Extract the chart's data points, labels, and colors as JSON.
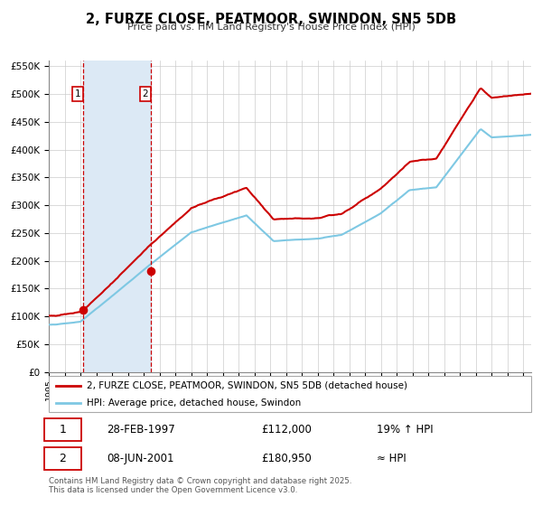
{
  "title": "2, FURZE CLOSE, PEATMOOR, SWINDON, SN5 5DB",
  "subtitle": "Price paid vs. HM Land Registry's House Price Index (HPI)",
  "legend_line1": "2, FURZE CLOSE, PEATMOOR, SWINDON, SN5 5DB (detached house)",
  "legend_line2": "HPI: Average price, detached house, Swindon",
  "transaction1_date": "28-FEB-1997",
  "transaction1_price": "£112,000",
  "transaction1_hpi": "19% ↑ HPI",
  "transaction2_date": "08-JUN-2001",
  "transaction2_price": "£180,950",
  "transaction2_hpi": "≈ HPI",
  "footer": "Contains HM Land Registry data © Crown copyright and database right 2025.\nThis data is licensed under the Open Government Licence v3.0.",
  "sale1_date": 1997.16,
  "sale1_price": 112000,
  "sale2_date": 2001.44,
  "sale2_price": 180950,
  "hpi_color": "#7ec8e3",
  "price_color": "#cc0000",
  "shading_color": "#dce9f5",
  "vline_color": "#cc0000",
  "background_color": "#ffffff",
  "grid_color": "#cccccc",
  "ylim_max": 560000,
  "ylim_min": 0,
  "xlim_min": 1995.0,
  "xlim_max": 2025.5,
  "yticks": [
    0,
    50000,
    100000,
    150000,
    200000,
    250000,
    300000,
    350000,
    400000,
    450000,
    500000,
    550000
  ]
}
